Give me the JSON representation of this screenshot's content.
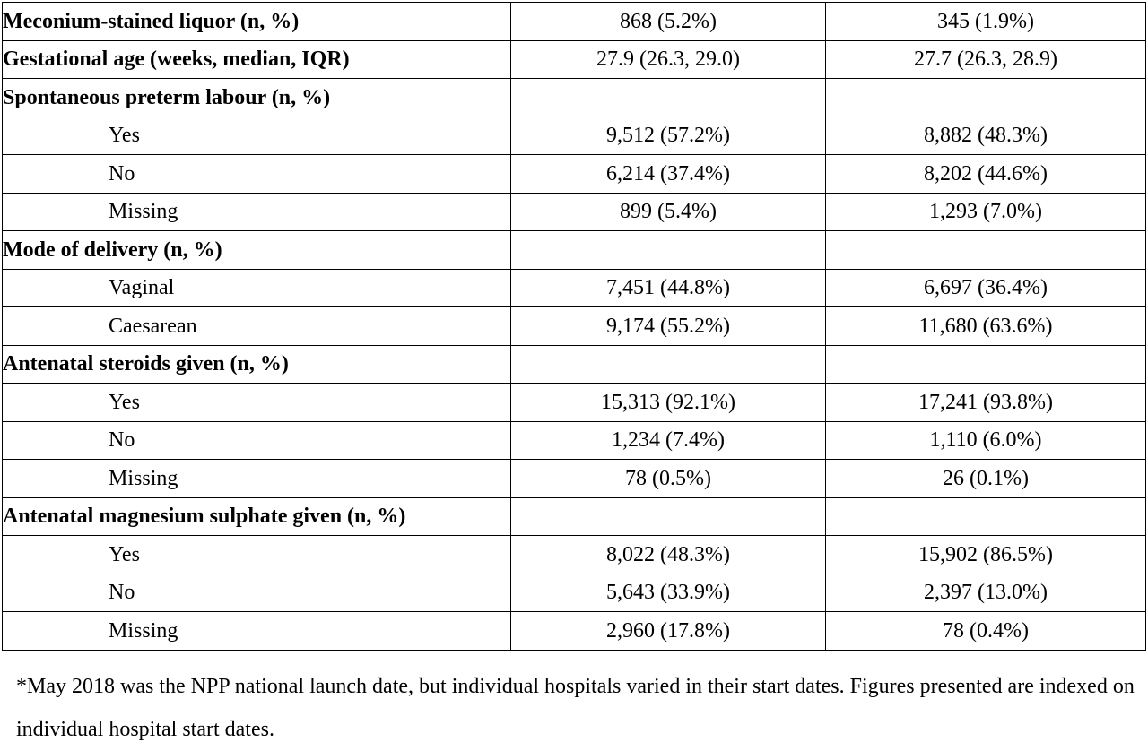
{
  "table": {
    "rows": [
      {
        "label": "Meconium-stained liquor (n, %)",
        "bold": true,
        "col1": "868 (5.2%)",
        "col2": "345 (1.9%)"
      },
      {
        "label": "Gestational age (weeks, median, IQR)",
        "bold": true,
        "col1": "27.9 (26.3, 29.0)",
        "col2": "27.7 (26.3, 28.9)"
      },
      {
        "label": "Spontaneous preterm labour (n, %)",
        "bold": true,
        "col1": "",
        "col2": ""
      },
      {
        "label": "Yes",
        "bold": false,
        "col1": "9,512 (57.2%)",
        "col2": "8,882 (48.3%)"
      },
      {
        "label": "No",
        "bold": false,
        "col1": "6,214 (37.4%)",
        "col2": "8,202 (44.6%)"
      },
      {
        "label": "Missing",
        "bold": false,
        "col1": "899 (5.4%)",
        "col2": "1,293 (7.0%)"
      },
      {
        "label": "Mode of delivery (n, %)",
        "bold": true,
        "col1": "",
        "col2": ""
      },
      {
        "label": "Vaginal",
        "bold": false,
        "col1": "7,451 (44.8%)",
        "col2": "6,697 (36.4%)"
      },
      {
        "label": "Caesarean",
        "bold": false,
        "col1": "9,174 (55.2%)",
        "col2": "11,680 (63.6%)"
      },
      {
        "label": "Antenatal steroids given (n, %)",
        "bold": true,
        "col1": "",
        "col2": ""
      },
      {
        "label": "Yes",
        "bold": false,
        "col1": "15,313 (92.1%)",
        "col2": "17,241 (93.8%)"
      },
      {
        "label": "No",
        "bold": false,
        "col1": "1,234 (7.4%)",
        "col2": "1,110 (6.0%)"
      },
      {
        "label": "Missing",
        "bold": false,
        "col1": "78 (0.5%)",
        "col2": "26 (0.1%)"
      },
      {
        "label": "Antenatal magnesium sulphate given (n, %)",
        "bold": true,
        "col1": "",
        "col2": ""
      },
      {
        "label": "Yes",
        "bold": false,
        "col1": "8,022 (48.3%)",
        "col2": "15,902 (86.5%)"
      },
      {
        "label": "No",
        "bold": false,
        "col1": "5,643 (33.9%)",
        "col2": "2,397 (13.0%)"
      },
      {
        "label": "Missing",
        "bold": false,
        "col1": "2,960 (17.8%)",
        "col2": "78 (0.4%)"
      }
    ]
  },
  "footnote": "*May 2018 was the NPP national launch date, but individual hospitals varied in their start dates. Figures presented are indexed on individual hospital start dates."
}
